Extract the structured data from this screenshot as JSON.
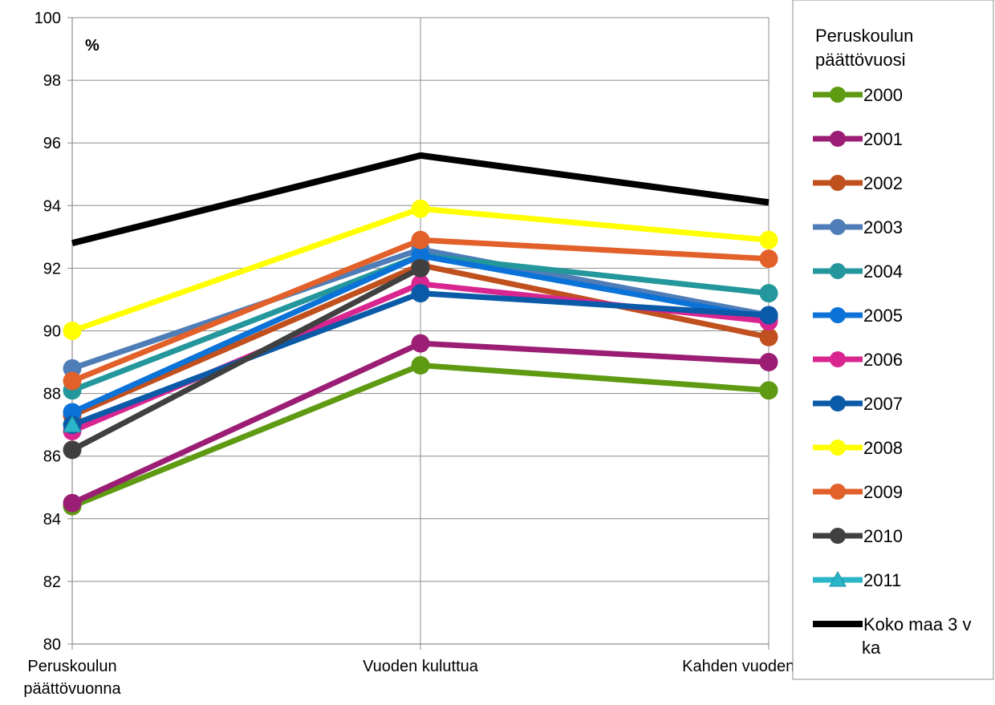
{
  "chart_data": {
    "type": "line",
    "unit_label": "%",
    "categories": [
      [
        "Peruskoulun",
        "päättövuonna"
      ],
      [
        "Vuoden kuluttua"
      ],
      [
        "Kahden vuoden kuluttua"
      ]
    ],
    "ylim": [
      80,
      100
    ],
    "yticks": [
      "80",
      "82",
      "84",
      "86",
      "88",
      "90",
      "92",
      "94",
      "96",
      "98",
      "100"
    ],
    "grid": true,
    "legend": {
      "placement": "right",
      "title_lines": [
        "Peruskoulun",
        "päättövuosi"
      ]
    },
    "series": [
      {
        "name": "2000",
        "color": "#5e9a12",
        "marker": "circle",
        "values": [
          84.4,
          88.9,
          88.1
        ]
      },
      {
        "name": "2001",
        "color": "#9b1e74",
        "marker": "circle",
        "values": [
          84.5,
          89.6,
          89.0
        ]
      },
      {
        "name": "2002",
        "color": "#c0501e",
        "marker": "circle",
        "values": [
          87.3,
          92.1,
          89.8
        ]
      },
      {
        "name": "2003",
        "color": "#4f7db8",
        "marker": "circle",
        "values": [
          88.8,
          92.6,
          90.5
        ]
      },
      {
        "name": "2004",
        "color": "#23979c",
        "marker": "circle",
        "values": [
          88.1,
          92.4,
          91.2
        ]
      },
      {
        "name": "2005",
        "color": "#0b72d8",
        "marker": "circle",
        "values": [
          87.4,
          92.4,
          90.4
        ]
      },
      {
        "name": "2006",
        "color": "#d8258f",
        "marker": "circle",
        "values": [
          86.8,
          91.5,
          90.3
        ]
      },
      {
        "name": "2007",
        "color": "#0a5aa8",
        "marker": "circle",
        "values": [
          87.0,
          91.2,
          90.5
        ]
      },
      {
        "name": "2008",
        "color": "#ffff00",
        "marker": "circle",
        "values": [
          90.0,
          93.9,
          92.9
        ]
      },
      {
        "name": "2009",
        "color": "#e2612a",
        "marker": "circle",
        "values": [
          88.4,
          92.9,
          92.3
        ]
      },
      {
        "name": "2010",
        "color": "#404040",
        "marker": "circle",
        "values": [
          86.2,
          92.0,
          null
        ]
      },
      {
        "name": "2011",
        "color": "#2ab5c9",
        "marker": "triangle",
        "values": [
          87.0,
          null,
          null
        ]
      },
      {
        "name": "Koko maa 3 v ka",
        "name_lines": [
          "Koko maa 3 v",
          "ka"
        ],
        "color": "#000000",
        "marker": "none",
        "values": [
          92.8,
          95.6,
          94.1
        ]
      }
    ]
  }
}
